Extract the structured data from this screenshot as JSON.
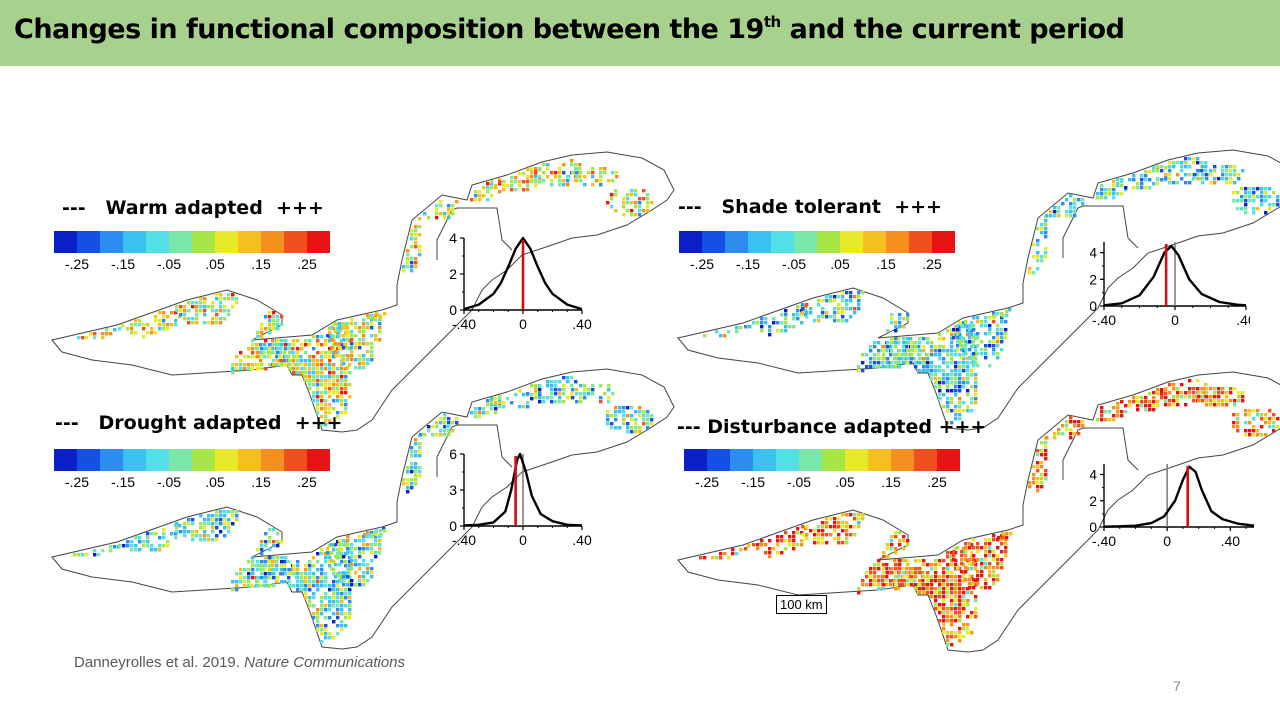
{
  "slide": {
    "title_main": "Changes in functional composition between the 19",
    "title_sup": "th",
    "title_end": " and the current period",
    "citation_authors": "Danneyrolles et al. 2019. ",
    "citation_journal": "Nature Communications",
    "page_number": "7",
    "scale_label": "100 km"
  },
  "colorbar": {
    "colors": [
      "#0a1fc6",
      "#1450e6",
      "#2d8cf0",
      "#3cc0f0",
      "#52e0e6",
      "#7ae6a8",
      "#a6e646",
      "#e6ea28",
      "#f5c01e",
      "#f5901e",
      "#f0501e",
      "#e61414"
    ],
    "tick_labels": [
      "-.25",
      "-.15",
      "-.05",
      ".05",
      ".15",
      ".25"
    ]
  },
  "panels": [
    {
      "id": "warm",
      "label": "---   Warm adapted  +++",
      "bias": 0.05,
      "chart": {
        "type": "line",
        "x": [
          -0.4,
          -0.3,
          -0.2,
          -0.15,
          -0.1,
          -0.05,
          0,
          0.05,
          0.1,
          0.15,
          0.2,
          0.3,
          0.4
        ],
        "y": [
          0.05,
          0.3,
          0.9,
          1.5,
          2.4,
          3.4,
          4.0,
          3.4,
          2.4,
          1.5,
          0.9,
          0.3,
          0.05
        ],
        "xlim": [
          -0.4,
          0.4
        ],
        "ylim": [
          0,
          4
        ],
        "yticks": [
          0,
          2,
          4
        ],
        "xtick_labels": [
          "-.40",
          "0",
          ".40"
        ],
        "red_line_x": 0
      }
    },
    {
      "id": "shade",
      "label": "---   Shade tolerant  +++",
      "bias": -0.07,
      "chart": {
        "type": "line",
        "x": [
          -0.4,
          -0.3,
          -0.2,
          -0.12,
          -0.06,
          -0.02,
          0.02,
          0.08,
          0.15,
          0.25,
          0.35,
          0.4
        ],
        "y": [
          0.05,
          0.2,
          0.8,
          2.2,
          4.0,
          4.5,
          3.8,
          2.0,
          0.9,
          0.3,
          0.1,
          0.05
        ],
        "xlim": [
          -0.4,
          0.4
        ],
        "ylim": [
          0,
          4.8
        ],
        "yticks": [
          0,
          2,
          4
        ],
        "xtick_labels": [
          "-.40",
          "0",
          ".40"
        ],
        "red_line_x": -0.05
      }
    },
    {
      "id": "drought",
      "label": "---   Drought adapted  +++",
      "bias": -0.05,
      "chart": {
        "type": "line",
        "x": [
          -0.4,
          -0.3,
          -0.2,
          -0.12,
          -0.08,
          -0.04,
          -0.02,
          0.02,
          0.06,
          0.12,
          0.2,
          0.3,
          0.4
        ],
        "y": [
          0.05,
          0.1,
          0.3,
          1.2,
          3.0,
          5.5,
          6.0,
          4.5,
          2.5,
          1.0,
          0.4,
          0.1,
          0.05
        ],
        "xlim": [
          -0.4,
          0.4
        ],
        "ylim": [
          0,
          6
        ],
        "yticks": [
          0,
          3,
          6
        ],
        "xtick_labels": [
          "-.40",
          "0",
          ".40"
        ],
        "red_line_x": -0.05
      }
    },
    {
      "id": "disturbance",
      "label": "--- Disturbance adapted +++",
      "bias": 0.17,
      "chart": {
        "type": "line",
        "x": [
          -0.4,
          -0.3,
          -0.2,
          -0.1,
          -0.02,
          0.05,
          0.1,
          0.14,
          0.18,
          0.22,
          0.28,
          0.35,
          0.45,
          0.55
        ],
        "y": [
          0.02,
          0.05,
          0.1,
          0.3,
          0.8,
          2.0,
          3.6,
          4.6,
          4.2,
          2.8,
          1.2,
          0.6,
          0.25,
          0.1
        ],
        "xlim": [
          -0.4,
          0.55
        ],
        "ylim": [
          0,
          4.8
        ],
        "yticks": [
          0,
          2,
          4
        ],
        "xtick_labels": [
          "-.40",
          "0",
          ".40"
        ],
        "red_line_x": 0.13
      }
    }
  ]
}
